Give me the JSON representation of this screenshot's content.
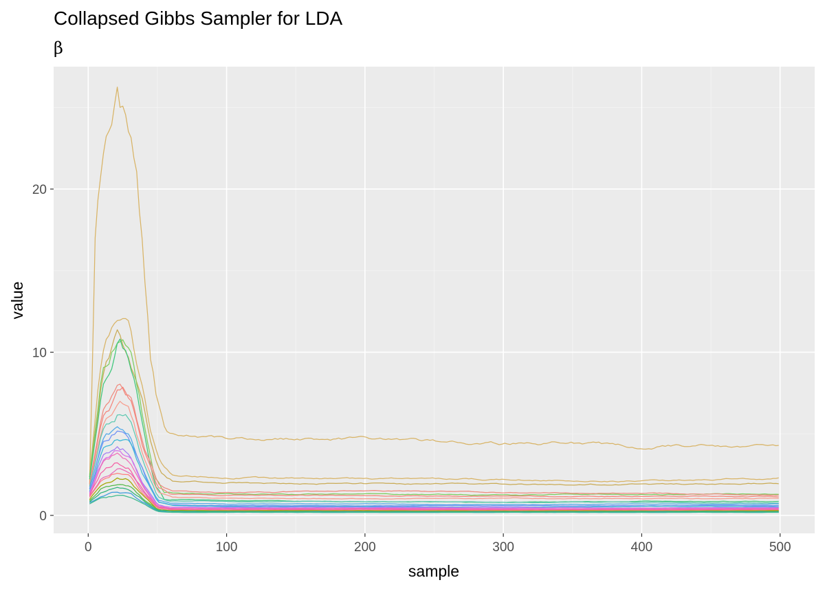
{
  "chart_data": {
    "type": "line",
    "title": "Collapsed Gibbs Sampler for LDA",
    "subtitle": "β",
    "xlabel": "sample",
    "ylabel": "value",
    "xlim": [
      -25,
      525
    ],
    "ylim": [
      -1.1,
      27.5
    ],
    "x_ticks": [
      0,
      100,
      200,
      300,
      400,
      500
    ],
    "y_ticks": [
      0,
      10,
      20
    ],
    "grid": true,
    "legend": "none",
    "background": "#ebebeb",
    "x_start": 1,
    "x_end": 500,
    "series": [
      {
        "color": "#d8b365",
        "values": [
          [
            1,
            2.0
          ],
          [
            5,
            17.0
          ],
          [
            10,
            21.5
          ],
          [
            20,
            26.3
          ],
          [
            25,
            25.0
          ],
          [
            30,
            23.5
          ],
          [
            35,
            21.0
          ],
          [
            40,
            16.0
          ],
          [
            45,
            10.0
          ],
          [
            50,
            7.0
          ],
          [
            55,
            5.6
          ],
          [
            60,
            5.0
          ],
          [
            100,
            4.75
          ],
          [
            150,
            4.7
          ],
          [
            200,
            4.65
          ],
          [
            250,
            4.5
          ],
          [
            300,
            4.4
          ],
          [
            350,
            4.45
          ],
          [
            400,
            4.15
          ],
          [
            420,
            4.3
          ],
          [
            450,
            4.25
          ],
          [
            500,
            4.25
          ]
        ]
      },
      {
        "color": "#d8b365",
        "values": [
          [
            1,
            2.5
          ],
          [
            10,
            9.5
          ],
          [
            20,
            12.3
          ],
          [
            30,
            11.2
          ],
          [
            38,
            8.5
          ],
          [
            45,
            5.0
          ],
          [
            52,
            3.0
          ],
          [
            60,
            2.4
          ],
          [
            100,
            2.3
          ],
          [
            200,
            2.25
          ],
          [
            300,
            2.2
          ],
          [
            400,
            2.1
          ],
          [
            500,
            2.3
          ]
        ]
      },
      {
        "color": "#c9ab55",
        "values": [
          [
            1,
            2.3
          ],
          [
            10,
            8.5
          ],
          [
            20,
            11.0
          ],
          [
            30,
            10.0
          ],
          [
            38,
            7.5
          ],
          [
            45,
            4.5
          ],
          [
            52,
            2.6
          ],
          [
            60,
            2.1
          ],
          [
            100,
            2.0
          ],
          [
            200,
            1.95
          ],
          [
            300,
            1.9
          ],
          [
            400,
            1.9
          ],
          [
            500,
            1.95
          ]
        ]
      },
      {
        "color": "#7ccd5f",
        "values": [
          [
            1,
            2.4
          ],
          [
            10,
            9.0
          ],
          [
            25,
            11.6
          ],
          [
            32,
            10.0
          ],
          [
            40,
            6.0
          ],
          [
            48,
            2.5
          ],
          [
            55,
            1.4
          ],
          [
            100,
            1.3
          ],
          [
            200,
            1.3
          ],
          [
            300,
            1.25
          ],
          [
            400,
            1.3
          ],
          [
            500,
            1.3
          ]
        ]
      },
      {
        "color": "#3fc77c",
        "values": [
          [
            1,
            2.2
          ],
          [
            10,
            8.0
          ],
          [
            22,
            10.8
          ],
          [
            30,
            9.5
          ],
          [
            40,
            5.5
          ],
          [
            48,
            2.0
          ],
          [
            55,
            1.0
          ],
          [
            100,
            0.9
          ],
          [
            200,
            0.85
          ],
          [
            300,
            0.8
          ],
          [
            400,
            0.85
          ],
          [
            500,
            0.85
          ]
        ]
      },
      {
        "color": "#f08a7e",
        "values": [
          [
            1,
            2.0
          ],
          [
            10,
            6.5
          ],
          [
            22,
            8.5
          ],
          [
            30,
            7.6
          ],
          [
            40,
            4.5
          ],
          [
            50,
            2.0
          ],
          [
            60,
            1.5
          ],
          [
            100,
            1.4
          ],
          [
            200,
            1.5
          ],
          [
            300,
            1.4
          ],
          [
            400,
            1.35
          ],
          [
            500,
            1.25
          ]
        ]
      },
      {
        "color": "#f4847b",
        "values": [
          [
            1,
            1.9
          ],
          [
            10,
            6.0
          ],
          [
            25,
            7.8
          ],
          [
            32,
            7.0
          ],
          [
            40,
            4.0
          ],
          [
            50,
            1.8
          ],
          [
            60,
            1.3
          ],
          [
            100,
            1.25
          ],
          [
            200,
            1.2
          ],
          [
            300,
            1.15
          ],
          [
            400,
            1.2
          ],
          [
            500,
            1.15
          ]
        ]
      },
      {
        "color": "#f79c8c",
        "values": [
          [
            1,
            1.8
          ],
          [
            10,
            5.5
          ],
          [
            22,
            7.2
          ],
          [
            30,
            6.5
          ],
          [
            40,
            3.5
          ],
          [
            50,
            1.5
          ],
          [
            60,
            1.1
          ],
          [
            100,
            1.05
          ],
          [
            200,
            1.0
          ],
          [
            300,
            1.05
          ],
          [
            400,
            1.0
          ],
          [
            500,
            1.05
          ]
        ]
      },
      {
        "color": "#5bc8b0",
        "values": [
          [
            1,
            1.8
          ],
          [
            10,
            5.0
          ],
          [
            22,
            6.2
          ],
          [
            30,
            5.8
          ],
          [
            40,
            3.2
          ],
          [
            50,
            1.2
          ],
          [
            60,
            0.9
          ],
          [
            100,
            0.85
          ],
          [
            200,
            0.85
          ],
          [
            300,
            0.8
          ],
          [
            400,
            0.8
          ],
          [
            500,
            0.75
          ]
        ]
      },
      {
        "color": "#4fa8e8",
        "values": [
          [
            1,
            1.6
          ],
          [
            10,
            4.5
          ],
          [
            22,
            5.4
          ],
          [
            30,
            4.9
          ],
          [
            40,
            2.8
          ],
          [
            50,
            1.0
          ],
          [
            60,
            0.75
          ],
          [
            100,
            0.7
          ],
          [
            200,
            0.7
          ],
          [
            300,
            0.65
          ],
          [
            400,
            0.7
          ],
          [
            500,
            0.7
          ]
        ]
      },
      {
        "color": "#6d8ff5",
        "values": [
          [
            1,
            1.6
          ],
          [
            10,
            4.2
          ],
          [
            20,
            5.1
          ],
          [
            30,
            4.6
          ],
          [
            40,
            2.6
          ],
          [
            50,
            0.9
          ],
          [
            60,
            0.65
          ],
          [
            100,
            0.6
          ],
          [
            200,
            0.6
          ],
          [
            300,
            0.6
          ],
          [
            400,
            0.6
          ],
          [
            500,
            0.6
          ]
        ]
      },
      {
        "color": "#39b7d6",
        "values": [
          [
            1,
            1.5
          ],
          [
            10,
            4.0
          ],
          [
            20,
            4.8
          ],
          [
            30,
            4.4
          ],
          [
            40,
            2.4
          ],
          [
            50,
            0.8
          ],
          [
            60,
            0.6
          ],
          [
            100,
            0.55
          ],
          [
            200,
            0.55
          ],
          [
            300,
            0.5
          ],
          [
            400,
            0.55
          ],
          [
            500,
            0.55
          ]
        ]
      },
      {
        "color": "#a47cf2",
        "values": [
          [
            1,
            1.4
          ],
          [
            10,
            3.5
          ],
          [
            20,
            4.2
          ],
          [
            30,
            3.8
          ],
          [
            40,
            2.0
          ],
          [
            50,
            0.7
          ],
          [
            60,
            0.5
          ],
          [
            100,
            0.5
          ],
          [
            200,
            0.5
          ],
          [
            300,
            0.5
          ],
          [
            400,
            0.45
          ],
          [
            500,
            0.5
          ]
        ]
      },
      {
        "color": "#d670e8",
        "values": [
          [
            1,
            1.4
          ],
          [
            10,
            3.2
          ],
          [
            20,
            3.9
          ],
          [
            30,
            3.5
          ],
          [
            40,
            1.8
          ],
          [
            50,
            0.65
          ],
          [
            60,
            0.5
          ],
          [
            100,
            0.45
          ],
          [
            200,
            0.45
          ],
          [
            300,
            0.45
          ],
          [
            400,
            0.45
          ],
          [
            500,
            0.45
          ]
        ]
      },
      {
        "color": "#ef6fb8",
        "values": [
          [
            1,
            1.3
          ],
          [
            10,
            3.0
          ],
          [
            20,
            3.6
          ],
          [
            30,
            3.2
          ],
          [
            40,
            1.7
          ],
          [
            50,
            0.6
          ],
          [
            60,
            0.45
          ],
          [
            100,
            0.4
          ],
          [
            200,
            0.42
          ],
          [
            300,
            0.4
          ],
          [
            400,
            0.4
          ],
          [
            500,
            0.42
          ]
        ]
      },
      {
        "color": "#f55fa4",
        "values": [
          [
            1,
            1.2
          ],
          [
            10,
            2.8
          ],
          [
            20,
            3.3
          ],
          [
            30,
            3.0
          ],
          [
            40,
            1.6
          ],
          [
            50,
            0.55
          ],
          [
            60,
            0.4
          ],
          [
            100,
            0.38
          ],
          [
            200,
            0.38
          ],
          [
            300,
            0.36
          ],
          [
            400,
            0.36
          ],
          [
            500,
            0.38
          ]
        ]
      },
      {
        "color": "#e86ab6",
        "values": [
          [
            1,
            1.2
          ],
          [
            10,
            2.5
          ],
          [
            20,
            3.0
          ],
          [
            30,
            2.7
          ],
          [
            40,
            1.4
          ],
          [
            50,
            0.5
          ],
          [
            60,
            0.35
          ],
          [
            100,
            0.33
          ],
          [
            200,
            0.33
          ],
          [
            300,
            0.33
          ],
          [
            400,
            0.33
          ],
          [
            500,
            0.33
          ]
        ]
      },
      {
        "color": "#ff7f7f",
        "values": [
          [
            1,
            1.1
          ],
          [
            10,
            2.3
          ],
          [
            20,
            2.8
          ],
          [
            30,
            2.5
          ],
          [
            40,
            1.3
          ],
          [
            50,
            0.45
          ],
          [
            60,
            0.32
          ],
          [
            100,
            0.3
          ],
          [
            200,
            0.3
          ],
          [
            300,
            0.3
          ],
          [
            400,
            0.3
          ],
          [
            500,
            0.3
          ]
        ]
      },
      {
        "color": "#a3a500",
        "values": [
          [
            1,
            1.0
          ],
          [
            10,
            2.0
          ],
          [
            20,
            2.4
          ],
          [
            30,
            2.2
          ],
          [
            40,
            1.2
          ],
          [
            50,
            0.4
          ],
          [
            60,
            0.3
          ],
          [
            100,
            0.28
          ],
          [
            200,
            0.28
          ],
          [
            300,
            0.27
          ],
          [
            400,
            0.27
          ],
          [
            500,
            0.28
          ]
        ]
      },
      {
        "color": "#54b948",
        "values": [
          [
            1,
            0.9
          ],
          [
            10,
            1.7
          ],
          [
            20,
            2.0
          ],
          [
            30,
            1.8
          ],
          [
            40,
            1.0
          ],
          [
            50,
            0.35
          ],
          [
            60,
            0.27
          ],
          [
            100,
            0.25
          ],
          [
            200,
            0.25
          ],
          [
            300,
            0.24
          ],
          [
            400,
            0.25
          ],
          [
            500,
            0.25
          ]
        ]
      },
      {
        "color": "#2fb37a",
        "values": [
          [
            1,
            0.8
          ],
          [
            10,
            1.4
          ],
          [
            20,
            1.6
          ],
          [
            30,
            1.5
          ],
          [
            40,
            0.9
          ],
          [
            50,
            0.3
          ],
          [
            60,
            0.24
          ],
          [
            100,
            0.22
          ],
          [
            200,
            0.22
          ],
          [
            300,
            0.22
          ],
          [
            400,
            0.22
          ],
          [
            500,
            0.22
          ]
        ]
      },
      {
        "color": "#3c9bdc",
        "values": [
          [
            1,
            0.8
          ],
          [
            10,
            1.2
          ],
          [
            20,
            1.4
          ],
          [
            30,
            1.3
          ],
          [
            40,
            0.8
          ],
          [
            50,
            0.28
          ],
          [
            60,
            0.2
          ],
          [
            100,
            0.2
          ],
          [
            200,
            0.2
          ],
          [
            300,
            0.2
          ],
          [
            400,
            0.2
          ],
          [
            500,
            0.2
          ]
        ]
      },
      {
        "color": "#3dbb8c",
        "values": [
          [
            1,
            0.7
          ],
          [
            10,
            1.1
          ],
          [
            20,
            1.2
          ],
          [
            30,
            1.1
          ],
          [
            40,
            0.7
          ],
          [
            50,
            0.25
          ],
          [
            60,
            0.18
          ],
          [
            100,
            0.18
          ],
          [
            200,
            0.18
          ],
          [
            300,
            0.18
          ],
          [
            400,
            0.18
          ],
          [
            500,
            0.18
          ]
        ]
      }
    ]
  }
}
